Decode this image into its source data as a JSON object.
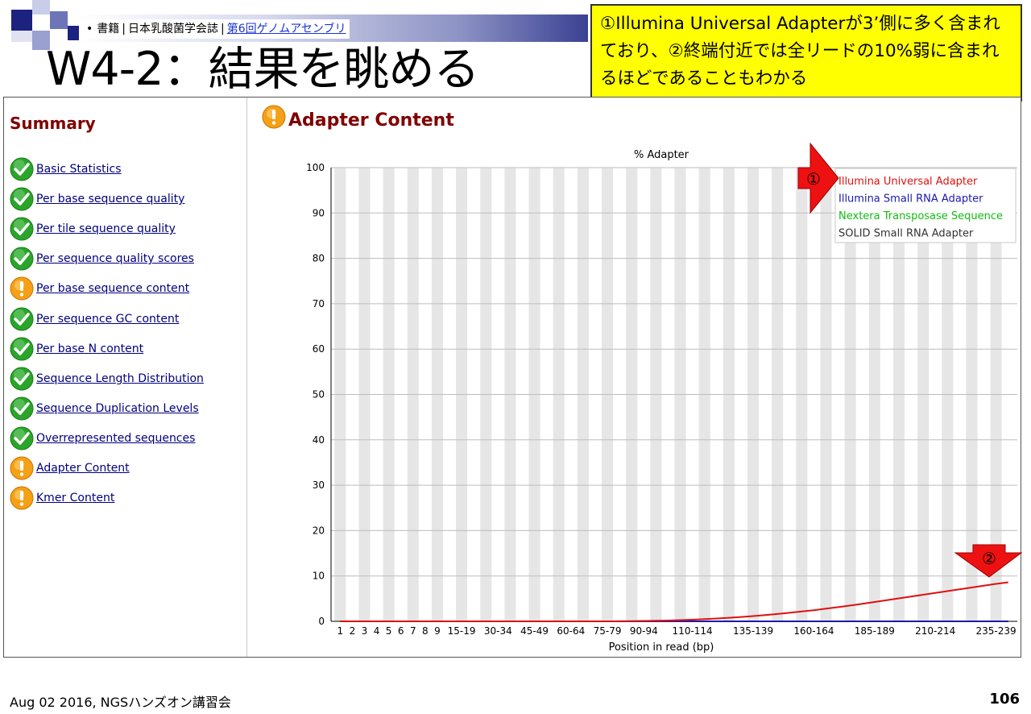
{
  "slide": {
    "breadcrumb": {
      "bullet": "•",
      "item1": "書籍",
      "sep1": "|",
      "item2": "日本乳酸菌学会誌",
      "sep2": "|",
      "link": "第6回ゲノムアセンブリ"
    },
    "title": "W4-2：結果を眺める",
    "callout": "①Illumina Universal Adapterが3’側に多く含まれており、②終端付近では全リードの10%弱に含まれるほどであることもわかる",
    "footer": "Aug 02 2016, NGSハンズオン講習会",
    "page_number": "106",
    "arrow1_label": "①",
    "arrow2_label": "②",
    "colors": {
      "callout_bg": "#ffff00",
      "arrow": "#ee1111",
      "title_bar": "#3b4192"
    }
  },
  "sidebar": {
    "title": "Summary",
    "modules": [
      {
        "label": "Basic Statistics",
        "status": "pass"
      },
      {
        "label": "Per base sequence quality",
        "status": "pass"
      },
      {
        "label": "Per tile sequence quality",
        "status": "pass"
      },
      {
        "label": "Per sequence quality scores",
        "status": "pass"
      },
      {
        "label": "Per base sequence content",
        "status": "warn"
      },
      {
        "label": "Per sequence GC content",
        "status": "pass"
      },
      {
        "label": "Per base N content",
        "status": "pass"
      },
      {
        "label": "Sequence Length Distribution",
        "status": "pass"
      },
      {
        "label": "Sequence Duplication Levels",
        "status": "pass"
      },
      {
        "label": "Overrepresented sequences",
        "status": "pass"
      },
      {
        "label": "Adapter Content",
        "status": "warn"
      },
      {
        "label": "Kmer Content",
        "status": "warn"
      }
    ]
  },
  "main": {
    "section_title": "Adapter Content",
    "status": "warn"
  },
  "chart_data": {
    "type": "line",
    "title": "% Adapter",
    "xlabel": "Position in read (bp)",
    "ylabel": "",
    "ylim": [
      0,
      100
    ],
    "yticks": [
      0,
      10,
      20,
      30,
      40,
      50,
      60,
      70,
      80,
      90,
      100
    ],
    "x_tick_labels": [
      "1",
      "2",
      "3",
      "4",
      "5",
      "6",
      "7",
      "8",
      "9",
      "15-19",
      "30-34",
      "45-49",
      "60-64",
      "75-79",
      "90-94",
      "110-114",
      "135-139",
      "160-164",
      "185-189",
      "210-214",
      "235-239"
    ],
    "categories": [
      "1",
      "2",
      "3",
      "4",
      "5",
      "6",
      "7",
      "8",
      "9",
      "10-14",
      "15-19",
      "20-24",
      "25-29",
      "30-34",
      "35-39",
      "40-44",
      "45-49",
      "50-54",
      "55-59",
      "60-64",
      "65-69",
      "70-74",
      "75-79",
      "80-84",
      "85-89",
      "90-94",
      "95-99",
      "100-104",
      "105-109",
      "110-114",
      "115-119",
      "120-124",
      "125-129",
      "130-134",
      "135-139",
      "140-144",
      "145-149",
      "150-154",
      "155-159",
      "160-164",
      "165-169",
      "170-174",
      "175-179",
      "180-184",
      "185-189",
      "190-194",
      "195-199",
      "200-204",
      "205-209",
      "210-214",
      "215-219",
      "220-224",
      "225-229",
      "230-234",
      "235-239",
      "240-244"
    ],
    "legend_position": "top-right",
    "grid": true,
    "series": [
      {
        "name": "Illumina Universal Adapter",
        "color": "#dd1111",
        "values": [
          0,
          0,
          0,
          0,
          0,
          0,
          0,
          0,
          0,
          0,
          0,
          0,
          0,
          0,
          0,
          0,
          0,
          0,
          0,
          0,
          0,
          0,
          0,
          0.02,
          0.04,
          0.08,
          0.12,
          0.18,
          0.26,
          0.36,
          0.48,
          0.62,
          0.78,
          0.96,
          1.16,
          1.38,
          1.62,
          1.88,
          2.16,
          2.46,
          2.78,
          3.12,
          3.48,
          3.86,
          4.26,
          4.66,
          5.06,
          5.46,
          5.86,
          6.26,
          6.66,
          7.06,
          7.46,
          7.86,
          8.26,
          8.6
        ]
      },
      {
        "name": "Illumina Small RNA Adapter",
        "color": "#1a1aaa",
        "values": [
          0,
          0,
          0,
          0,
          0,
          0,
          0,
          0,
          0,
          0,
          0,
          0,
          0,
          0,
          0,
          0,
          0,
          0,
          0,
          0,
          0,
          0,
          0,
          0,
          0,
          0,
          0,
          0,
          0,
          0,
          0,
          0,
          0,
          0,
          0,
          0,
          0,
          0,
          0,
          0,
          0,
          0,
          0,
          0,
          0,
          0,
          0,
          0,
          0,
          0,
          0,
          0,
          0,
          0,
          0,
          0
        ]
      },
      {
        "name": "Nextera Transposase Sequence",
        "color": "#11bb11",
        "values": [
          0,
          0,
          0,
          0,
          0,
          0,
          0,
          0,
          0,
          0,
          0,
          0,
          0,
          0,
          0,
          0,
          0,
          0,
          0,
          0,
          0,
          0,
          0,
          0,
          0,
          0,
          0,
          0,
          0,
          0,
          0,
          0,
          0,
          0,
          0,
          0,
          0,
          0,
          0,
          0,
          0,
          0,
          0,
          0,
          0,
          0,
          0,
          0,
          0,
          0,
          0,
          0,
          0,
          0,
          0,
          0
        ]
      },
      {
        "name": "SOLID Small RNA Adapter",
        "color": "#333333",
        "values": [
          0,
          0,
          0,
          0,
          0,
          0,
          0,
          0,
          0,
          0,
          0,
          0,
          0,
          0,
          0,
          0,
          0,
          0,
          0,
          0,
          0,
          0,
          0,
          0,
          0,
          0,
          0,
          0,
          0,
          0,
          0,
          0,
          0,
          0,
          0,
          0,
          0,
          0,
          0,
          0,
          0,
          0,
          0,
          0,
          0,
          0,
          0,
          0,
          0,
          0,
          0,
          0,
          0,
          0,
          0,
          0
        ]
      }
    ]
  }
}
